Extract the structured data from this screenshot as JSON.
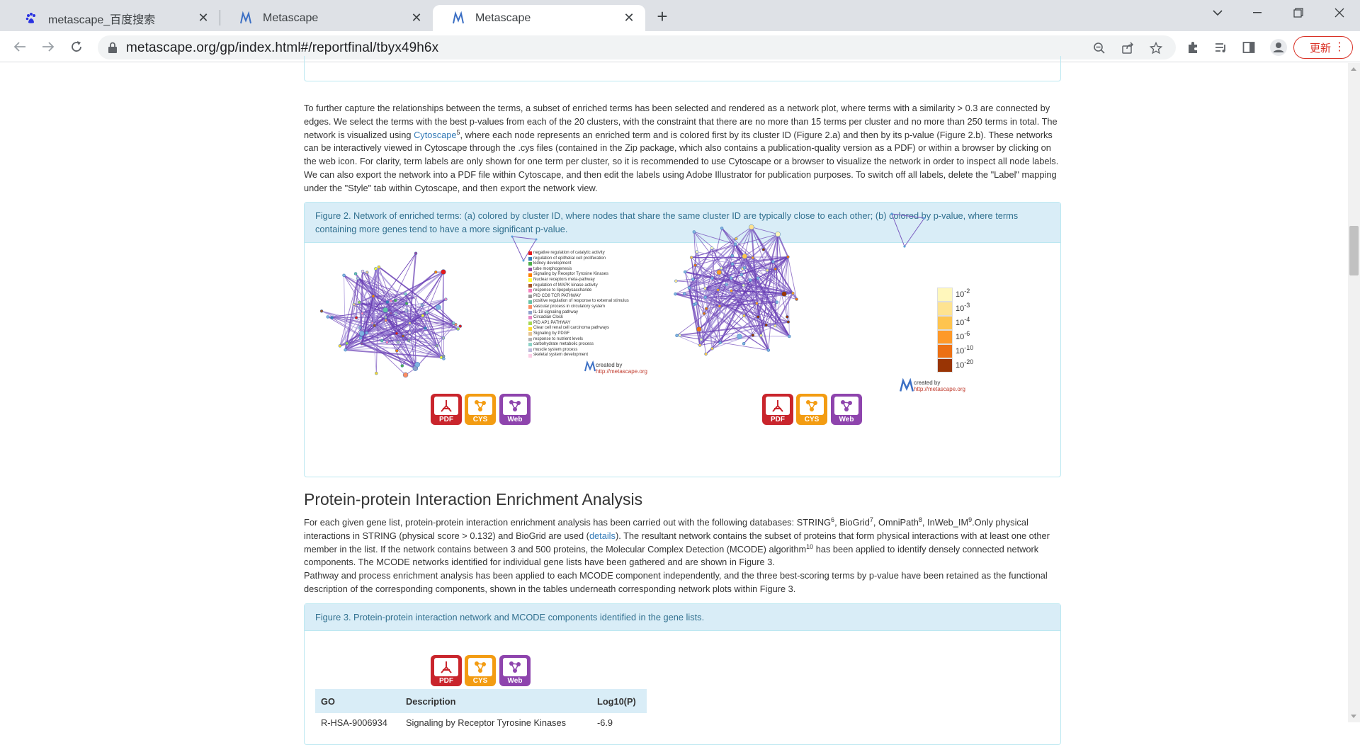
{
  "browser": {
    "tabs": [
      {
        "title": "metascape_百度搜索",
        "active": false
      },
      {
        "title": "Metascape",
        "active": false
      },
      {
        "title": "Metascape",
        "active": true
      }
    ],
    "url": "metascape.org/gp/index.html#/reportfinal/tbyx49h6x",
    "update_label": "更新"
  },
  "page": {
    "network_paragraph": {
      "part1": "To further capture the relationships between the terms, a subset of enriched terms has been selected and rendered as a network plot, where terms with a similarity > 0.3 are connected by edges. We select the terms with the best p-values from each of the 20 clusters, with the constraint that there are no more than 15 terms per cluster and no more than 250 terms in total. The network is visualized using ",
      "link": "Cytoscape",
      "ref": "5",
      "part2": ", where each node represents an enriched term and is colored first by its cluster ID (Figure 2.a) and then by its p-value (Figure 2.b). These networks can be interactively viewed in Cytoscape through the .cys files (contained in the Zip package, which also contains a publication-quality version as a PDF) or within a browser by clicking on the web icon. For clarity, term labels are only shown for one term per cluster, so it is recommended to use Cytoscape or a browser to visualize the network in order to inspect all node labels. We can also export the network into a PDF file within Cytoscape, and then edit the labels using Adobe Illustrator for publication purposes. To switch off all labels, delete the \"Label\" mapping under the \"Style\" tab within Cytoscape, and then export the network view."
    },
    "figure2": {
      "caption": "Figure 2. Network of enriched terms: (a) colored by cluster ID, where nodes that share the same cluster ID are typically close to each other; (b) colored by p-value, where terms containing more genes tend to have a more significant p-value.",
      "cluster_legend": [
        {
          "label": "negative regulation of catalytic activity",
          "color": "#e41a1c"
        },
        {
          "label": "regulation of epithelial cell proliferation",
          "color": "#377eb8"
        },
        {
          "label": "kidney development",
          "color": "#4daf4a"
        },
        {
          "label": "tube morphogenesis",
          "color": "#984ea3"
        },
        {
          "label": "Signaling by Receptor Tyrosine Kinases",
          "color": "#ff7f00"
        },
        {
          "label": "Nuclear receptors meta-pathway",
          "color": "#ffff33"
        },
        {
          "label": "regulation of MAPK kinase activity",
          "color": "#a65628"
        },
        {
          "label": "response to lipopolysaccharide",
          "color": "#f781bf"
        },
        {
          "label": "PID CD8 TCR PATHWAY",
          "color": "#999999"
        },
        {
          "label": "positive regulation of response to external stimulus",
          "color": "#66c2a5"
        },
        {
          "label": "vascular process in circulatory system",
          "color": "#fc8d62"
        },
        {
          "label": "IL-18 signaling pathway",
          "color": "#8da0cb"
        },
        {
          "label": "Circadian Clock",
          "color": "#e78ac3"
        },
        {
          "label": "PID AP1 PATHWAY",
          "color": "#a6d854"
        },
        {
          "label": "Clear cell renal cell carcinoma pathways",
          "color": "#ffd92f"
        },
        {
          "label": "Signaling by PDGF",
          "color": "#e5c494"
        },
        {
          "label": "response to nutrient levels",
          "color": "#b3b3b3"
        },
        {
          "label": "carbohydrate metabolic process",
          "color": "#8dd3c7"
        },
        {
          "label": "muscle system process",
          "color": "#bebada"
        },
        {
          "label": "skeletal system development",
          "color": "#fccde5"
        }
      ],
      "pvalue_legend": [
        {
          "label": "10",
          "exp": "-2",
          "color": "#fff7bc"
        },
        {
          "label": "10",
          "exp": "-3",
          "color": "#fee391"
        },
        {
          "label": "10",
          "exp": "-4",
          "color": "#fec44f"
        },
        {
          "label": "10",
          "exp": "-6",
          "color": "#fe9929"
        },
        {
          "label": "10",
          "exp": "-10",
          "color": "#ec7014"
        },
        {
          "label": "10",
          "exp": "-20",
          "color": "#993404"
        }
      ],
      "credit_line1": "created by",
      "credit_line2": "http://metascape.org",
      "buttons": {
        "pdf": "PDF",
        "cys": "CYS",
        "web": "Web"
      }
    },
    "ppi_section": {
      "heading": "Protein-protein Interaction Enrichment Analysis",
      "p1_a": "For each given gene list, protein-protein interaction enrichment analysis has been carried out with the following databases: STRING",
      "r6": "6",
      "p1_b": ", BioGrid",
      "r7": "7",
      "p1_c": ", OmniPath",
      "r8": "8",
      "p1_d": ", InWeb_IM",
      "r9": "9",
      "p1_e": ".Only physical interactions in STRING (physical score > 0.132) and BioGrid are used (",
      "details_link": "details",
      "p1_f": "). The resultant network contains the subset of proteins that form physical interactions with at least one other member in the list. If the network contains between 3 and 500 proteins, the Molecular Complex Detection (MCODE) algorithm",
      "r10": "10",
      "p1_g": " has been applied to identify densely connected network components. The MCODE networks identified for individual gene lists have been gathered and are shown in Figure 3.",
      "p2": "Pathway and process enrichment analysis has been applied to each MCODE component independently, and the three best-scoring terms by p-value have been retained as the functional description of the corresponding components, shown in the tables underneath corresponding network plots within Figure 3."
    },
    "figure3": {
      "caption": "Figure 3. Protein-protein interaction network and MCODE components identified in the gene lists.",
      "table_headers": [
        "GO",
        "Description",
        "Log10(P)"
      ],
      "table_rows": [
        [
          "R-HSA-9006934",
          "Signaling by Receptor Tyrosine Kinases",
          "-6.9"
        ]
      ]
    }
  }
}
